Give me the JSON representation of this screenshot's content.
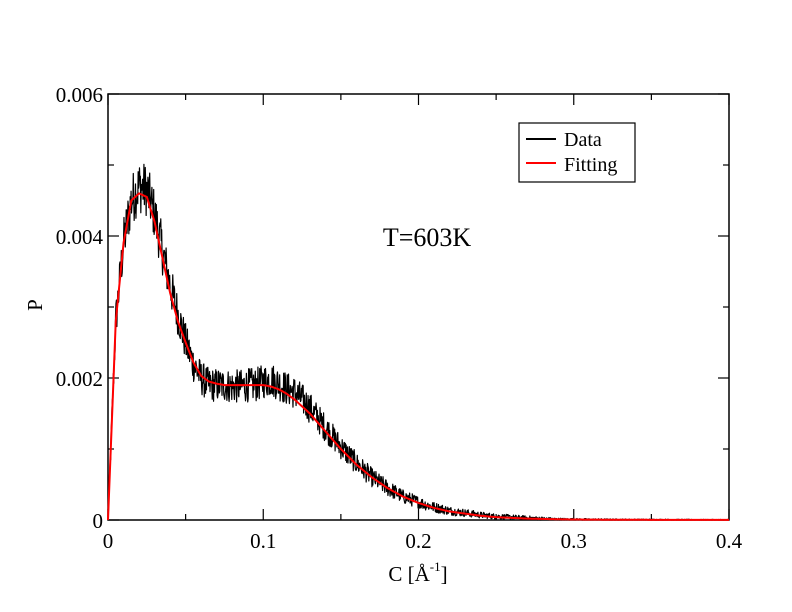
{
  "chart_data": {
    "type": "line",
    "xlabel_base": "C [",
    "xlabel_unit": "Å",
    "xlabel_exp": "-1",
    "xlabel_close": "]",
    "ylabel": "P",
    "xlim": [
      0,
      0.4
    ],
    "ylim": [
      0,
      0.006
    ],
    "x_ticks": [
      0,
      0.1,
      0.2,
      0.3,
      0.4
    ],
    "x_tick_labels": [
      "0",
      "0.1",
      "0.2",
      "0.3",
      "0.4"
    ],
    "y_ticks": [
      0,
      0.002,
      0.004,
      0.006
    ],
    "y_tick_labels": [
      "0",
      "0.002",
      "0.004",
      "0.006"
    ],
    "annotation": "T=603K",
    "grid": false,
    "legend_position": "top-right",
    "series": [
      {
        "name": "Data",
        "color": "#000000",
        "style": "noisy",
        "x": [
          0,
          0.005,
          0.01,
          0.015,
          0.02,
          0.025,
          0.03,
          0.035,
          0.04,
          0.045,
          0.05,
          0.055,
          0.06,
          0.065,
          0.07,
          0.075,
          0.08,
          0.085,
          0.09,
          0.095,
          0.1,
          0.105,
          0.11,
          0.115,
          0.12,
          0.125,
          0.13,
          0.14,
          0.15,
          0.16,
          0.17,
          0.18,
          0.19,
          0.2,
          0.21,
          0.22,
          0.23,
          0.24,
          0.25,
          0.26,
          0.27,
          0.28,
          0.29,
          0.3,
          0.32,
          0.34,
          0.36,
          0.38,
          0.4
        ],
        "y": [
          0,
          0.0028,
          0.0039,
          0.0045,
          0.0047,
          0.00465,
          0.0043,
          0.0038,
          0.0033,
          0.0029,
          0.0025,
          0.0022,
          0.002,
          0.0019,
          0.0019,
          0.0019,
          0.00188,
          0.00188,
          0.0019,
          0.0019,
          0.00195,
          0.00198,
          0.00192,
          0.00185,
          0.0018,
          0.0017,
          0.00158,
          0.0013,
          0.00103,
          0.0008,
          0.0006,
          0.00045,
          0.00033,
          0.00025,
          0.00018,
          0.00013,
          0.0001,
          7e-05,
          5e-05,
          4e-05,
          3e-05,
          2e-05,
          1e-05,
          8e-06,
          5e-06,
          4e-06,
          3e-06,
          2e-06,
          2e-06
        ]
      },
      {
        "name": "Fitting",
        "color": "#ff0000",
        "style": "smooth",
        "x": [
          0,
          0.005,
          0.01,
          0.015,
          0.02,
          0.025,
          0.03,
          0.035,
          0.04,
          0.045,
          0.05,
          0.055,
          0.06,
          0.065,
          0.07,
          0.075,
          0.08,
          0.085,
          0.09,
          0.095,
          0.1,
          0.105,
          0.11,
          0.115,
          0.12,
          0.125,
          0.13,
          0.14,
          0.15,
          0.16,
          0.17,
          0.18,
          0.19,
          0.2,
          0.21,
          0.22,
          0.23,
          0.24,
          0.25,
          0.26,
          0.27,
          0.28,
          0.29,
          0.3,
          0.32,
          0.34,
          0.36,
          0.38,
          0.4
        ],
        "y": [
          0,
          0.0028,
          0.0039,
          0.0045,
          0.0046,
          0.00455,
          0.0042,
          0.0037,
          0.0032,
          0.0028,
          0.0025,
          0.00222,
          0.00203,
          0.00195,
          0.00192,
          0.0019,
          0.0019,
          0.0019,
          0.0019,
          0.0019,
          0.0019,
          0.00188,
          0.00184,
          0.00178,
          0.0017,
          0.0016,
          0.0015,
          0.00125,
          0.001,
          0.00078,
          0.0006,
          0.00045,
          0.00033,
          0.00024,
          0.00017,
          0.00012,
          9e-05,
          6e-05,
          4e-05,
          3e-05,
          2e-05,
          1.5e-05,
          1e-05,
          7e-06,
          4e-06,
          3e-06,
          2e-06,
          2e-06,
          2e-06
        ]
      }
    ]
  }
}
